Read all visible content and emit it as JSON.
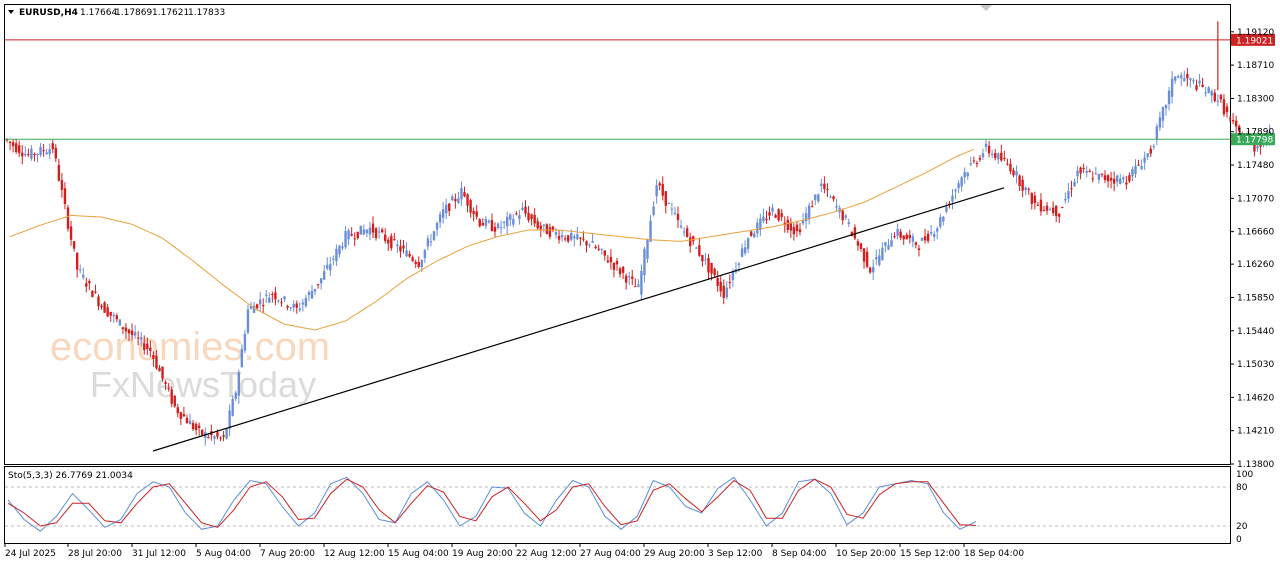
{
  "header": {
    "symbol": "EURUSD,H4",
    "open": "1.17664",
    "high": "1.17869",
    "low": "1.17621",
    "close": "1.17833"
  },
  "watermark": {
    "line1": "economies.com",
    "line2": "FxNewsToday"
  },
  "colors": {
    "bull": "#6a8fd8",
    "bear": "#d41e1e",
    "ma": "#e8a33c",
    "resistance": "#cc2222",
    "current": "#3aaa5a",
    "trendline": "#000000",
    "stoch_main": "#5b8fd8",
    "stoch_signal": "#cc2222"
  },
  "chart_data": [
    {
      "type": "candlestick",
      "title": "EURUSD,H4",
      "ylim": [
        1.138,
        1.1945
      ],
      "y_ticks": [
        "1.19120",
        "1.18710",
        "1.18300",
        "1.17890",
        "1.17480",
        "1.17070",
        "1.16660",
        "1.16260",
        "1.15850",
        "1.15440",
        "1.15030",
        "1.14620",
        "1.14210",
        "1.13800"
      ],
      "x_ticks": [
        "24 Jul 2025",
        "28 Jul 20:00",
        "31 Jul 12:00",
        "5 Aug 04:00",
        "7 Aug 20:00",
        "12 Aug 12:00",
        "15 Aug 04:00",
        "19 Aug 20:00",
        "22 Aug 12:00",
        "27 Aug 04:00",
        "29 Aug 20:00",
        "3 Sep 12:00",
        "8 Sep 04:00",
        "10 Sep 20:00",
        "15 Sep 12:00",
        "18 Sep 04:00"
      ],
      "horizontal_lines": [
        {
          "name": "resistance",
          "value": 1.19021,
          "label": "1.19021"
        },
        {
          "name": "current-price",
          "value": 1.17798,
          "label": "1.17798"
        }
      ],
      "trendline": {
        "from": {
          "x": "31 Jul 12:00",
          "y": 1.1396
        },
        "to": {
          "x": "18 Sep 04:00",
          "y": 1.172
        }
      },
      "ma_path": [
        [
          0,
          1.166
        ],
        [
          10,
          1.1674
        ],
        [
          20,
          1.1686
        ],
        [
          30,
          1.1684
        ],
        [
          40,
          1.1675
        ],
        [
          50,
          1.1658
        ],
        [
          60,
          1.163
        ],
        [
          70,
          1.16
        ],
        [
          80,
          1.1572
        ],
        [
          90,
          1.1552
        ],
        [
          100,
          1.1545
        ],
        [
          110,
          1.1556
        ],
        [
          120,
          1.158
        ],
        [
          130,
          1.1608
        ],
        [
          140,
          1.163
        ],
        [
          150,
          1.1648
        ],
        [
          160,
          1.166
        ],
        [
          170,
          1.1668
        ],
        [
          180,
          1.1668
        ],
        [
          190,
          1.1664
        ],
        [
          200,
          1.166
        ],
        [
          210,
          1.1656
        ],
        [
          220,
          1.1654
        ],
        [
          230,
          1.166
        ],
        [
          240,
          1.1666
        ],
        [
          250,
          1.1672
        ],
        [
          260,
          1.168
        ],
        [
          270,
          1.169
        ],
        [
          280,
          1.1702
        ],
        [
          290,
          1.172
        ],
        [
          300,
          1.1738
        ],
        [
          310,
          1.1758
        ],
        [
          317,
          1.1769
        ]
      ],
      "ohlc_path": [
        [
          0,
          1.178
        ],
        [
          8,
          1.176
        ],
        [
          16,
          1.177
        ],
        [
          24,
          1.162
        ],
        [
          32,
          1.1575
        ],
        [
          40,
          1.1545
        ],
        [
          48,
          1.152
        ],
        [
          56,
          1.145
        ],
        [
          64,
          1.1418
        ],
        [
          72,
          1.141
        ],
        [
          76,
          1.147
        ],
        [
          80,
          1.157
        ],
        [
          88,
          1.159
        ],
        [
          96,
          1.157
        ],
        [
          104,
          1.1608
        ],
        [
          112,
          1.166
        ],
        [
          120,
          1.167
        ],
        [
          128,
          1.165
        ],
        [
          136,
          1.1628
        ],
        [
          144,
          1.169
        ],
        [
          150,
          1.1715
        ],
        [
          156,
          1.1678
        ],
        [
          162,
          1.167
        ],
        [
          170,
          1.1692
        ],
        [
          176,
          1.167
        ],
        [
          184,
          1.166
        ],
        [
          192,
          1.1652
        ],
        [
          200,
          1.1625
        ],
        [
          208,
          1.1595
        ],
        [
          214,
          1.1725
        ],
        [
          222,
          1.167
        ],
        [
          228,
          1.164
        ],
        [
          236,
          1.159
        ],
        [
          244,
          1.166
        ],
        [
          252,
          1.1692
        ],
        [
          260,
          1.1665
        ],
        [
          268,
          1.1723
        ],
        [
          276,
          1.168
        ],
        [
          284,
          1.162
        ],
        [
          292,
          1.1665
        ],
        [
          300,
          1.165
        ],
        [
          306,
          1.1673
        ],
        [
          314,
          1.1735
        ],
        [
          322,
          1.1768
        ],
        [
          330,
          1.1746
        ],
        [
          338,
          1.17
        ],
        [
          346,
          1.169
        ],
        [
          352,
          1.174
        ],
        [
          360,
          1.1732
        ],
        [
          368,
          1.173
        ],
        [
          376,
          1.1766
        ],
        [
          384,
          1.186
        ],
        [
          392,
          1.1845
        ],
        [
          398,
          1.183
        ],
        [
          404,
          1.179
        ],
        [
          410,
          1.177
        ],
        [
          414,
          1.1783
        ]
      ]
    },
    {
      "type": "line",
      "title": "Sto(5,3,3) 26.7769 21.0034",
      "ylim": [
        0,
        100
      ],
      "y_ticks": [
        "100",
        "80",
        "20",
        "0"
      ],
      "levels": [
        80,
        20
      ],
      "series": [
        {
          "name": "main",
          "values": [
            60,
            30,
            12,
            35,
            70,
            45,
            18,
            30,
            70,
            88,
            80,
            40,
            15,
            20,
            60,
            90,
            85,
            50,
            20,
            40,
            85,
            95,
            70,
            30,
            25,
            70,
            88,
            60,
            20,
            35,
            80,
            78,
            40,
            20,
            60,
            90,
            80,
            35,
            15,
            35,
            90,
            80,
            50,
            40,
            78,
            95,
            60,
            20,
            40,
            88,
            92,
            70,
            22,
            40,
            80,
            85,
            90,
            85,
            40,
            15,
            27
          ]
        },
        {
          "name": "signal",
          "values": [
            55,
            40,
            20,
            25,
            55,
            55,
            28,
            25,
            55,
            80,
            85,
            55,
            25,
            18,
            45,
            80,
            88,
            65,
            30,
            32,
            70,
            92,
            80,
            45,
            25,
            55,
            82,
            72,
            35,
            28,
            65,
            80,
            55,
            28,
            45,
            80,
            85,
            50,
            22,
            28,
            75,
            85,
            62,
            42,
            65,
            90,
            75,
            32,
            32,
            75,
            92,
            80,
            38,
            32,
            68,
            85,
            88,
            88,
            55,
            22,
            21
          ]
        }
      ]
    }
  ]
}
